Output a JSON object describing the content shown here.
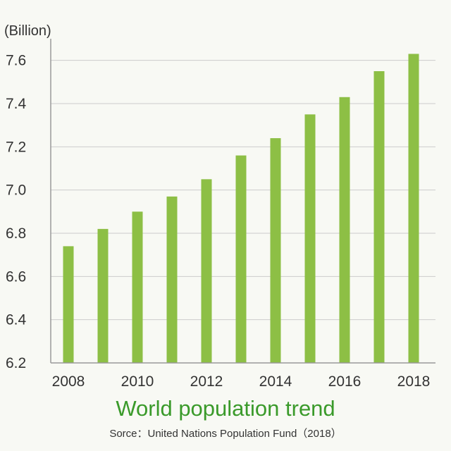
{
  "chart_data": {
    "type": "bar",
    "title": "World population trend",
    "unit_label": "(Billion)",
    "source": "Sorce：United Nations Population Fund（2018）",
    "x_tick_labels": [
      "2008",
      "2010",
      "2012",
      "2014",
      "2016",
      "2018"
    ],
    "categories": [
      "2008",
      "2009",
      "2010",
      "2011",
      "2012",
      "2013",
      "2014",
      "2015",
      "2016",
      "2017",
      "2018"
    ],
    "values": [
      6.74,
      6.82,
      6.9,
      6.97,
      7.05,
      7.16,
      7.24,
      7.35,
      7.43,
      7.55,
      7.63
    ],
    "ylim": [
      6.2,
      7.7
    ],
    "y_ticks": [
      6.2,
      6.4,
      6.6,
      6.8,
      7.0,
      7.2,
      7.4,
      7.6
    ],
    "y_tick_labels": [
      "6.2",
      "6.4",
      "6.6",
      "6.8",
      "7.0",
      "7.2",
      "7.4",
      "7.6"
    ],
    "grid": true,
    "colors": {
      "bar": "#8dbf45",
      "grid": "#cccccc",
      "axis": "#999999",
      "title": "#3a9a2a"
    }
  }
}
